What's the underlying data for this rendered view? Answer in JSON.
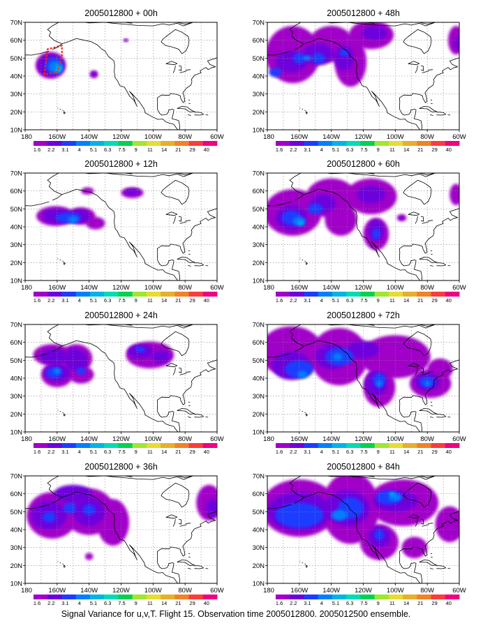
{
  "caption": "Signal Variance for u,v,T. Flight 15. Observation time 2005012800. 2005012500 ensemble.",
  "panels": [
    {
      "title": "2005012800 + 00h"
    },
    {
      "title": "2005012800 + 12h"
    },
    {
      "title": "2005012800 + 24h"
    },
    {
      "title": "2005012800 + 36h"
    },
    {
      "title": "2005012800 + 48h"
    },
    {
      "title": "2005012800 + 60h"
    },
    {
      "title": "2005012800 + 72h"
    },
    {
      "title": "2005012800 + 84h"
    }
  ],
  "lat_ticks": [
    "10N",
    "20N",
    "30N",
    "40N",
    "50N",
    "60N",
    "70N"
  ],
  "lon_ticks": [
    "180",
    "160W",
    "140W",
    "120W",
    "100W",
    "80W",
    "60W"
  ],
  "colorbar": {
    "labels": [
      "1.6",
      "2.2",
      "3.1",
      "4",
      "5.1",
      "6.3",
      "7.5",
      "9",
      "11",
      "14",
      "21",
      "29",
      "40"
    ],
    "colors": [
      "#a000c8",
      "#6e00dc",
      "#1e3cff",
      "#0080ff",
      "#00b4e6",
      "#00dcb4",
      "#00d250",
      "#a0e632",
      "#e6dc32",
      "#e6af2d",
      "#f08228",
      "#fa3c3c",
      "#f00082"
    ]
  },
  "map_extent": {
    "lon_min": -180,
    "lon_max": -60,
    "lat_min": 10,
    "lat_max": 70
  },
  "blob_colors": {
    "light": "#a000c8",
    "mid": "#6e00dc",
    "dark": "#1e3cff",
    "core": "#0080ff",
    "peak": "#00b4e6"
  }
}
